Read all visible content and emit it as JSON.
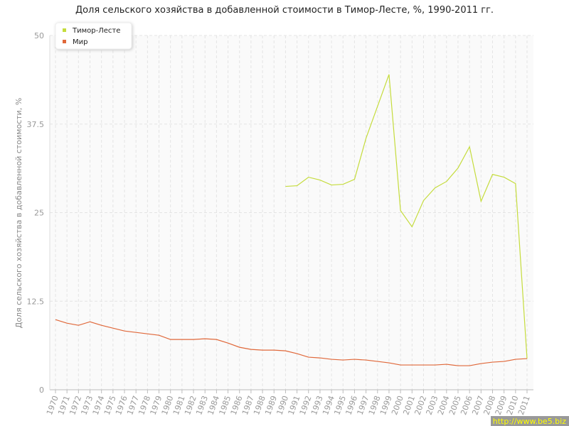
{
  "chart_data": {
    "type": "line",
    "title": "Доля сельского хозяйства в добавленной стоимости в Тимор-Лесте, %, 1990-2011 гг.",
    "y_label": "Доля сельского хозяйства в добавленной стоимости, %",
    "categories": [
      "1970",
      "1971",
      "1972",
      "1973",
      "1974",
      "1975",
      "1976",
      "1977",
      "1978",
      "1979",
      "1980",
      "1981",
      "1982",
      "1983",
      "1984",
      "1985",
      "1986",
      "1987",
      "1988",
      "1989",
      "1990",
      "1991",
      "1992",
      "1993",
      "1994",
      "1995",
      "1996",
      "1997",
      "1998",
      "1999",
      "2000",
      "2001",
      "2002",
      "2003",
      "2004",
      "2005",
      "2006",
      "2007",
      "2008",
      "2009",
      "2010",
      "2011"
    ],
    "series": [
      {
        "name": "Тимор-Лесте",
        "color": "#c5dc3c",
        "values": [
          null,
          null,
          null,
          null,
          null,
          null,
          null,
          null,
          null,
          null,
          null,
          null,
          null,
          null,
          null,
          null,
          null,
          null,
          null,
          null,
          28.7,
          28.8,
          30.0,
          29.6,
          28.9,
          29.0,
          29.7,
          35.5,
          40.0,
          44.5,
          25.3,
          23.0,
          26.7,
          28.5,
          29.4,
          31.3,
          34.3,
          26.6,
          30.4,
          30.0,
          29.1,
          4.4
        ]
      },
      {
        "name": "Мир",
        "color": "#e0683a",
        "values": [
          9.9,
          9.4,
          9.1,
          9.6,
          9.1,
          8.7,
          8.3,
          8.1,
          7.9,
          7.7,
          7.1,
          7.1,
          7.1,
          7.2,
          7.1,
          6.6,
          6.0,
          5.7,
          5.6,
          5.6,
          5.5,
          5.1,
          4.6,
          4.5,
          4.3,
          4.2,
          4.3,
          4.2,
          4.0,
          3.8,
          3.5,
          3.5,
          3.5,
          3.5,
          3.6,
          3.4,
          3.4,
          3.7,
          3.9,
          4.0,
          4.3,
          4.4
        ]
      }
    ],
    "ylim": [
      0,
      50
    ],
    "yticks": [
      0,
      12.5,
      25,
      37.5,
      50
    ],
    "grid": true,
    "legend": "top-left",
    "watermark": "http://www.be5.biz"
  }
}
